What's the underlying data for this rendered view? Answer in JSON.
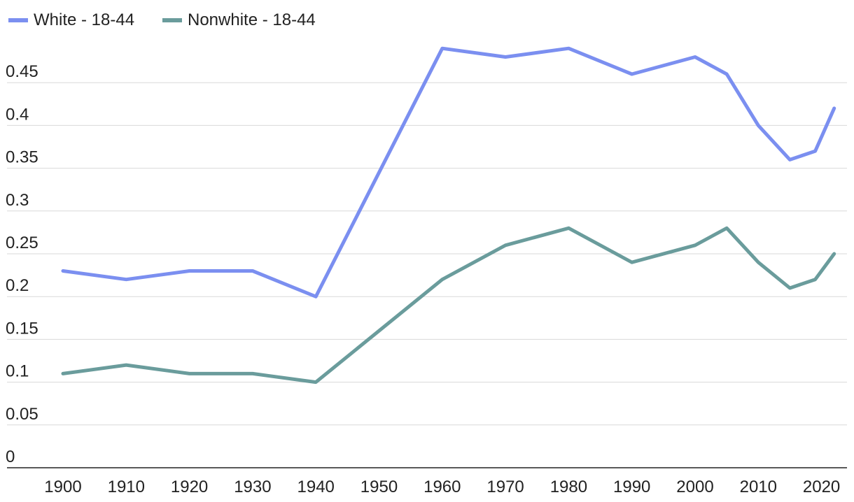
{
  "chart_data": {
    "type": "line",
    "title": "",
    "xlabel": "",
    "ylabel": "",
    "ylim": [
      0,
      0.5
    ],
    "y_ticks": [
      "0",
      "0.05",
      "0.1",
      "0.15",
      "0.2",
      "0.25",
      "0.3",
      "0.35",
      "0.4",
      "0.45"
    ],
    "x_ticks": [
      "1900",
      "1910",
      "1920",
      "1930",
      "1940",
      "1950",
      "1960",
      "1970",
      "1980",
      "1990",
      "2000",
      "2010",
      "2020"
    ],
    "grid": true,
    "legend_position": "top-left",
    "x": [
      1900,
      1910,
      1920,
      1930,
      1940,
      1960,
      1970,
      1980,
      1990,
      2000,
      2005,
      2010,
      2015,
      2019,
      2022
    ],
    "series": [
      {
        "name": "White - 18-44",
        "color": "#7b8ff0",
        "values": [
          0.23,
          0.22,
          0.23,
          0.23,
          0.2,
          0.49,
          0.48,
          0.49,
          0.46,
          0.48,
          0.46,
          0.4,
          0.36,
          0.37,
          0.42
        ]
      },
      {
        "name": "Nonwhite - 18-44",
        "color": "#6a9c9c",
        "values": [
          0.11,
          0.12,
          0.11,
          0.11,
          0.1,
          0.22,
          0.26,
          0.28,
          0.24,
          0.26,
          0.28,
          0.24,
          0.21,
          0.22,
          0.25
        ]
      }
    ]
  }
}
